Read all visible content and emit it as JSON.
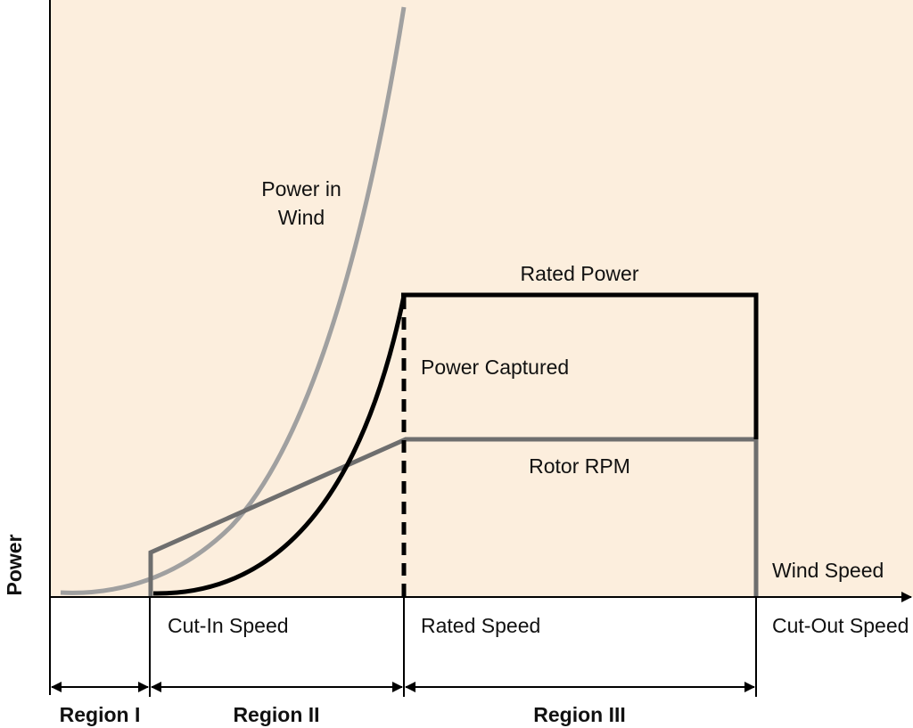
{
  "colors": {
    "plot_background": "#FCEEDD",
    "power_in_wind": "#A0A0A0",
    "power_captured": "#000000",
    "rotor_rpm": "#6E6E6E",
    "axes": "#000000"
  },
  "axes": {
    "y_label": "Power",
    "x_label": "Wind Speed"
  },
  "curves": {
    "power_in_wind": {
      "label_line1": "Power in",
      "label_line2": "Wind"
    },
    "rated_power": {
      "label": "Rated Power"
    },
    "power_captured": {
      "label": "Power Captured"
    },
    "rotor_rpm": {
      "label": "Rotor RPM"
    }
  },
  "speeds": {
    "cut_in": "Cut-In Speed",
    "rated": "Rated Speed",
    "cut_out": "Cut-Out Speed"
  },
  "regions": [
    {
      "label": "Region I"
    },
    {
      "label": "Region II"
    },
    {
      "label": "Region III"
    }
  ]
}
